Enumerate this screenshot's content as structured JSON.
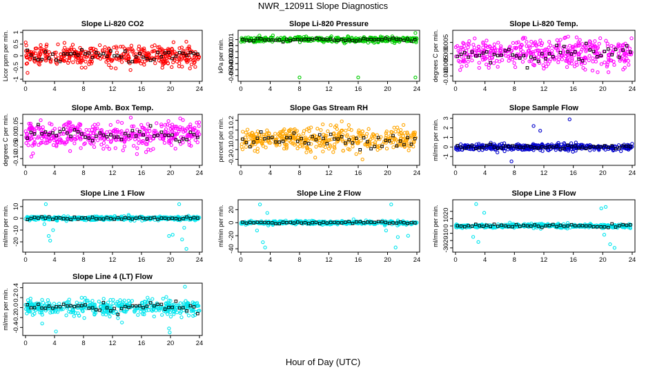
{
  "figure": {
    "title": "NWR_120911  Slope Diagnostics",
    "xlabel": "Hour of Day (UTC)"
  },
  "chart_data": [
    {
      "id": "co2",
      "type": "scatter",
      "title": "Slope Li-820 CO2",
      "ylabel": "Licor ppm per min.",
      "xlim": [
        0,
        24
      ],
      "ylim": [
        -1.0,
        1.0
      ],
      "x_ticks": [
        0,
        4,
        8,
        12,
        16,
        20,
        24
      ],
      "y_ticks": [
        -1,
        -0.5,
        0,
        0.5,
        1
      ],
      "y_tick_labels": [
        "-1",
        "-0.5",
        "0",
        "0.5",
        "1"
      ],
      "color": "#ff0000",
      "spread": 0.38,
      "outliers": []
    },
    {
      "id": "pressure",
      "type": "scatter",
      "title": "Slope Li-820 Pressure",
      "ylabel": "kPa per min.",
      "xlim": [
        0,
        24
      ],
      "ylim": [
        -0.056,
        0.022
      ],
      "x_ticks": [
        0,
        4,
        8,
        12,
        16,
        20,
        24
      ],
      "y_ticks": [
        -0.05,
        -0.04,
        -0.03,
        -0.02,
        -0.01,
        0.0,
        0.01
      ],
      "y_tick_labels": [
        "-0.05",
        "-0.04",
        "-0.03",
        "-0.02",
        "-0.01",
        "0.00",
        "0.01"
      ],
      "color": "#00cc00",
      "center": 0.01,
      "spread": 0.004,
      "outliers": [
        [
          8.0,
          -0.053
        ],
        [
          16.0,
          -0.053
        ],
        [
          23.8,
          -0.053
        ],
        [
          23.8,
          0.021
        ]
      ]
    },
    {
      "id": "licor-temp",
      "type": "scatter",
      "title": "Slope Li-820 Temp.",
      "ylabel": "degrees C per min.",
      "xlim": [
        0,
        24
      ],
      "ylim": [
        -0.0115,
        0.0095
      ],
      "x_ticks": [
        0,
        4,
        8,
        12,
        16,
        20,
        24
      ],
      "y_ticks": [
        -0.01,
        -0.005,
        0.0,
        0.005
      ],
      "y_tick_labels": [
        "-0.010",
        "-0.005",
        "0.000",
        "0.005"
      ],
      "color": "#ff00ff",
      "spread": 0.0058,
      "outliers": []
    },
    {
      "id": "box-temp",
      "type": "scatter",
      "title": "Slope Amb. Box Temp.",
      "ylabel": "degrees C per min.",
      "xlim": [
        0,
        24
      ],
      "ylim": [
        -0.12,
        0.08
      ],
      "x_ticks": [
        0,
        4,
        8,
        12,
        16,
        20,
        24
      ],
      "y_ticks": [
        -0.1,
        -0.05,
        0,
        0.05
      ],
      "y_tick_labels": [
        "-0.10",
        "-0.05",
        "0.00",
        "0.05"
      ],
      "color": "#ff00ff",
      "spread": 0.05,
      "outliers": []
    },
    {
      "id": "rh",
      "type": "scatter",
      "title": "Slope Gas Stream RH",
      "ylabel": "percent per min.",
      "xlim": [
        0,
        24
      ],
      "ylim": [
        -0.24,
        0.24
      ],
      "x_ticks": [
        0,
        4,
        8,
        12,
        16,
        20,
        24
      ],
      "y_ticks": [
        -0.2,
        -0.1,
        0,
        0.1,
        0.2
      ],
      "y_tick_labels": [
        "-0.2",
        "-0.1",
        "0.0",
        "0.1",
        "0.2"
      ],
      "color": "#ffa500",
      "spread": 0.11,
      "outliers": []
    },
    {
      "id": "sample-flow",
      "type": "scatter",
      "title": "Slope Sample Flow",
      "ylabel": "ml/min per min.",
      "xlim": [
        0,
        24
      ],
      "ylim": [
        -1.7,
        3.2
      ],
      "x_ticks": [
        0,
        4,
        8,
        12,
        16,
        20,
        24
      ],
      "y_ticks": [
        -1,
        0,
        1,
        2,
        3
      ],
      "y_tick_labels": [
        "-1",
        "0",
        "1",
        "2",
        "3"
      ],
      "color": "#0000cc",
      "spread": 0.3,
      "outliers": [
        [
          7.6,
          -1.5
        ],
        [
          10.6,
          2.2
        ],
        [
          15.5,
          2.9
        ],
        [
          11.5,
          1.7
        ]
      ]
    },
    {
      "id": "line1",
      "type": "scatter",
      "title": "Slope Line 1 Flow",
      "ylabel": "ml/min per min.",
      "xlim": [
        0,
        24
      ],
      "ylim": [
        -27,
        14
      ],
      "x_ticks": [
        0,
        4,
        8,
        12,
        16,
        20,
        24
      ],
      "y_ticks": [
        -20,
        -10,
        0,
        10
      ],
      "y_tick_labels": [
        "-20",
        "-10",
        "0",
        "10"
      ],
      "color": "#00e5ee",
      "spread": 1.5,
      "outliers": [
        [
          2.8,
          12
        ],
        [
          3.2,
          -15
        ],
        [
          3.4,
          -19
        ],
        [
          3.8,
          -10
        ],
        [
          2.6,
          -5
        ],
        [
          19.8,
          -15
        ],
        [
          20.3,
          -14
        ],
        [
          21.2,
          12
        ],
        [
          21.6,
          -18
        ],
        [
          21.9,
          -8
        ],
        [
          22.2,
          -26
        ]
      ]
    },
    {
      "id": "line2",
      "type": "scatter",
      "title": "Slope Line 2 Flow",
      "ylabel": "ml/min per min.",
      "xlim": [
        0,
        24
      ],
      "ylim": [
        -42,
        32
      ],
      "x_ticks": [
        0,
        4,
        8,
        12,
        16,
        20,
        24
      ],
      "y_ticks": [
        -40,
        -20,
        0,
        20
      ],
      "y_tick_labels": [
        "-40",
        "-20",
        "0",
        "20"
      ],
      "color": "#00e5ee",
      "spread": 2.5,
      "outliers": [
        [
          2.6,
          28
        ],
        [
          3.0,
          -30
        ],
        [
          3.3,
          -38
        ],
        [
          3.6,
          15
        ],
        [
          2.2,
          -12
        ],
        [
          20.5,
          28
        ],
        [
          21.1,
          -38
        ],
        [
          21.4,
          -22
        ],
        [
          19.8,
          -12
        ],
        [
          22.8,
          -20
        ]
      ]
    },
    {
      "id": "line3",
      "type": "scatter",
      "title": "Slope Line 3 Flow",
      "ylabel": "ml/min per min.",
      "xlim": [
        0,
        24
      ],
      "ylim": [
        -33,
        33
      ],
      "x_ticks": [
        0,
        4,
        8,
        12,
        16,
        20,
        24
      ],
      "y_ticks": [
        -30,
        -20,
        -10,
        0,
        10,
        20
      ],
      "y_tick_labels": [
        "-30",
        "-20",
        "-10",
        "0",
        "10",
        "20"
      ],
      "color": "#00e5ee",
      "spread": 2.5,
      "outliers": [
        [
          2.8,
          30
        ],
        [
          3.1,
          -22
        ],
        [
          2.4,
          -15
        ],
        [
          3.9,
          18
        ],
        [
          19.8,
          24
        ],
        [
          20.4,
          26
        ],
        [
          21.0,
          -25
        ],
        [
          21.6,
          -30
        ],
        [
          20.2,
          -12
        ]
      ]
    },
    {
      "id": "line4",
      "type": "scatter",
      "title": "Slope Line 4 (LT) Flow",
      "ylabel": "ml/min per min.",
      "xlim": [
        0,
        24
      ],
      "ylim": [
        -0.52,
        0.45
      ],
      "x_ticks": [
        0,
        4,
        8,
        12,
        16,
        20,
        24
      ],
      "y_ticks": [
        -0.4,
        -0.2,
        0,
        0.2,
        0.4
      ],
      "y_tick_labels": [
        "-0.4",
        "-0.2",
        "0.0",
        "0.2",
        "0.4"
      ],
      "color": "#00e5ee",
      "spread": 0.14,
      "outliers": [
        [
          4.2,
          -0.48
        ],
        [
          2.3,
          -0.32
        ],
        [
          19.8,
          -0.42
        ],
        [
          19.9,
          -0.5
        ],
        [
          22.0,
          0.42
        ],
        [
          13.3,
          -0.3
        ]
      ]
    }
  ]
}
